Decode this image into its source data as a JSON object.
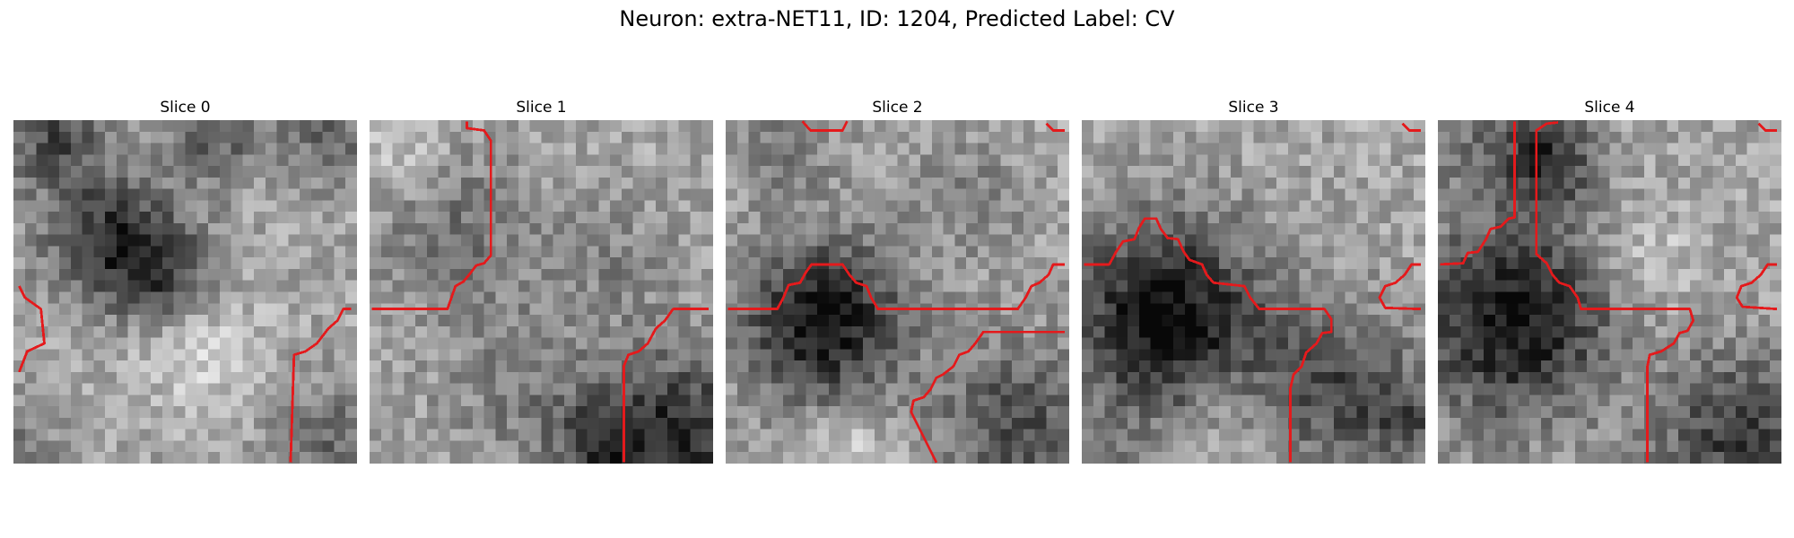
{
  "figure": {
    "title": "Neuron: extra-NET11, ID: 1204, Predicted Label: CV"
  },
  "panels": [
    {
      "title": "Slice 0"
    },
    {
      "title": "Slice 1"
    },
    {
      "title": "Slice 2"
    },
    {
      "title": "Slice 3"
    },
    {
      "title": "Slice 4"
    }
  ],
  "colors": {
    "contour": "#e41a1c",
    "colormap": "grayscale"
  }
}
